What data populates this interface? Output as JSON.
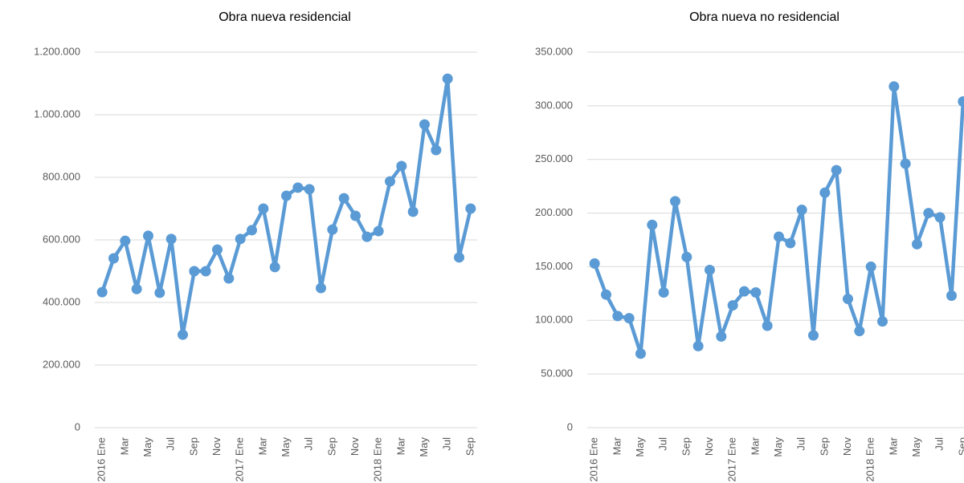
{
  "chart_data": [
    {
      "type": "line",
      "title": "Obra nueva residencial",
      "categories": [
        "2016 Ene",
        null,
        "Mar",
        null,
        "May",
        null,
        "Jul",
        null,
        "Sep",
        null,
        "Nov",
        null,
        "2017 Ene",
        null,
        "Mar",
        null,
        "May",
        null,
        "Jul",
        null,
        "Sep",
        null,
        "Nov",
        null,
        "2018 Ene",
        null,
        "Mar",
        null,
        "May",
        null,
        "Jul",
        null,
        "Sep"
      ],
      "values": [
        433000,
        541000,
        597000,
        443000,
        613000,
        431000,
        603000,
        297000,
        500000,
        500000,
        569000,
        477000,
        603000,
        631000,
        700000,
        513000,
        741000,
        767000,
        762000,
        446000,
        633000,
        733000,
        677000,
        610000,
        628000,
        787000,
        836000,
        690000,
        969000,
        887000,
        1115000,
        544000,
        700000
      ],
      "color": "#5b9bd5",
      "ylim": [
        0,
        1200000
      ],
      "yticks": [
        0,
        {
          "value": 200000,
          "label": "200.000"
        },
        {
          "value": 400000,
          "label": "400.000"
        },
        {
          "value": 600000,
          "label": "600.000"
        },
        {
          "value": 800000,
          "label": "800.000"
        },
        {
          "value": 1000000,
          "label": "1.000.000"
        },
        {
          "value": 1200000,
          "label": "1.200.000"
        }
      ],
      "grid": true
    },
    {
      "type": "line",
      "title": "Obra nueva no residencial",
      "categories": [
        "2016 Ene",
        null,
        "Mar",
        null,
        "May",
        null,
        "Jul",
        null,
        "Sep",
        null,
        "Nov",
        null,
        "2017 Ene",
        null,
        "Mar",
        null,
        "May",
        null,
        "Jul",
        null,
        "Sep",
        null,
        "Nov",
        null,
        "2018 Ene",
        null,
        "Mar",
        null,
        "May",
        null,
        "Jul",
        null,
        "Sep"
      ],
      "values": [
        153000,
        124000,
        104000,
        102000,
        69000,
        189000,
        126000,
        211000,
        159000,
        76000,
        147000,
        85000,
        114000,
        127000,
        126000,
        95000,
        178000,
        172000,
        203000,
        86000,
        219000,
        240000,
        120000,
        90000,
        150000,
        99000,
        318000,
        246000,
        171000,
        200000,
        196000,
        123000,
        304000
      ],
      "color": "#5b9bd5",
      "ylim": [
        0,
        350000
      ],
      "yticks": [
        0,
        {
          "value": 50000,
          "label": "50.000"
        },
        {
          "value": 100000,
          "label": "100.000"
        },
        {
          "value": 150000,
          "label": "150.000"
        },
        {
          "value": 200000,
          "label": "200.000"
        },
        {
          "value": 250000,
          "label": "250.000"
        },
        {
          "value": 300000,
          "label": "300.000"
        },
        {
          "value": 350000,
          "label": "350.000"
        }
      ],
      "grid": true
    }
  ]
}
